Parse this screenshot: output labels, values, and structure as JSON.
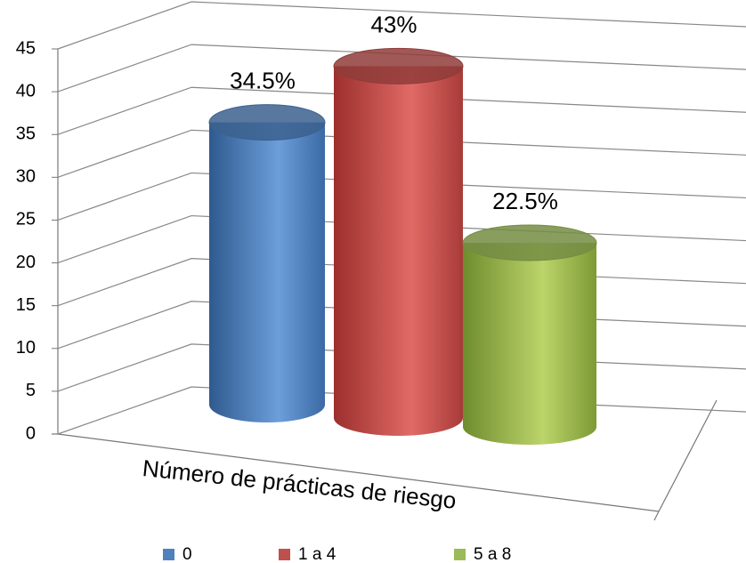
{
  "chart_data": {
    "type": "bar",
    "categories": [
      "Número de prácticas de riesgo"
    ],
    "series": [
      {
        "name": "0",
        "color": "#4f81bd",
        "values": [
          34.5
        ],
        "value_labels": [
          "34.5%"
        ]
      },
      {
        "name": "1 a 4",
        "color": "#c0504d",
        "values": [
          43
        ],
        "value_labels": [
          "43%"
        ]
      },
      {
        "name": "5 a 8",
        "color": "#9bbb59",
        "values": [
          22.5
        ],
        "value_labels": [
          "22.5%"
        ]
      }
    ],
    "ylim": [
      0,
      45
    ],
    "yticks": [
      0,
      5,
      10,
      15,
      20,
      25,
      30,
      35,
      40,
      45
    ],
    "grid": true
  }
}
